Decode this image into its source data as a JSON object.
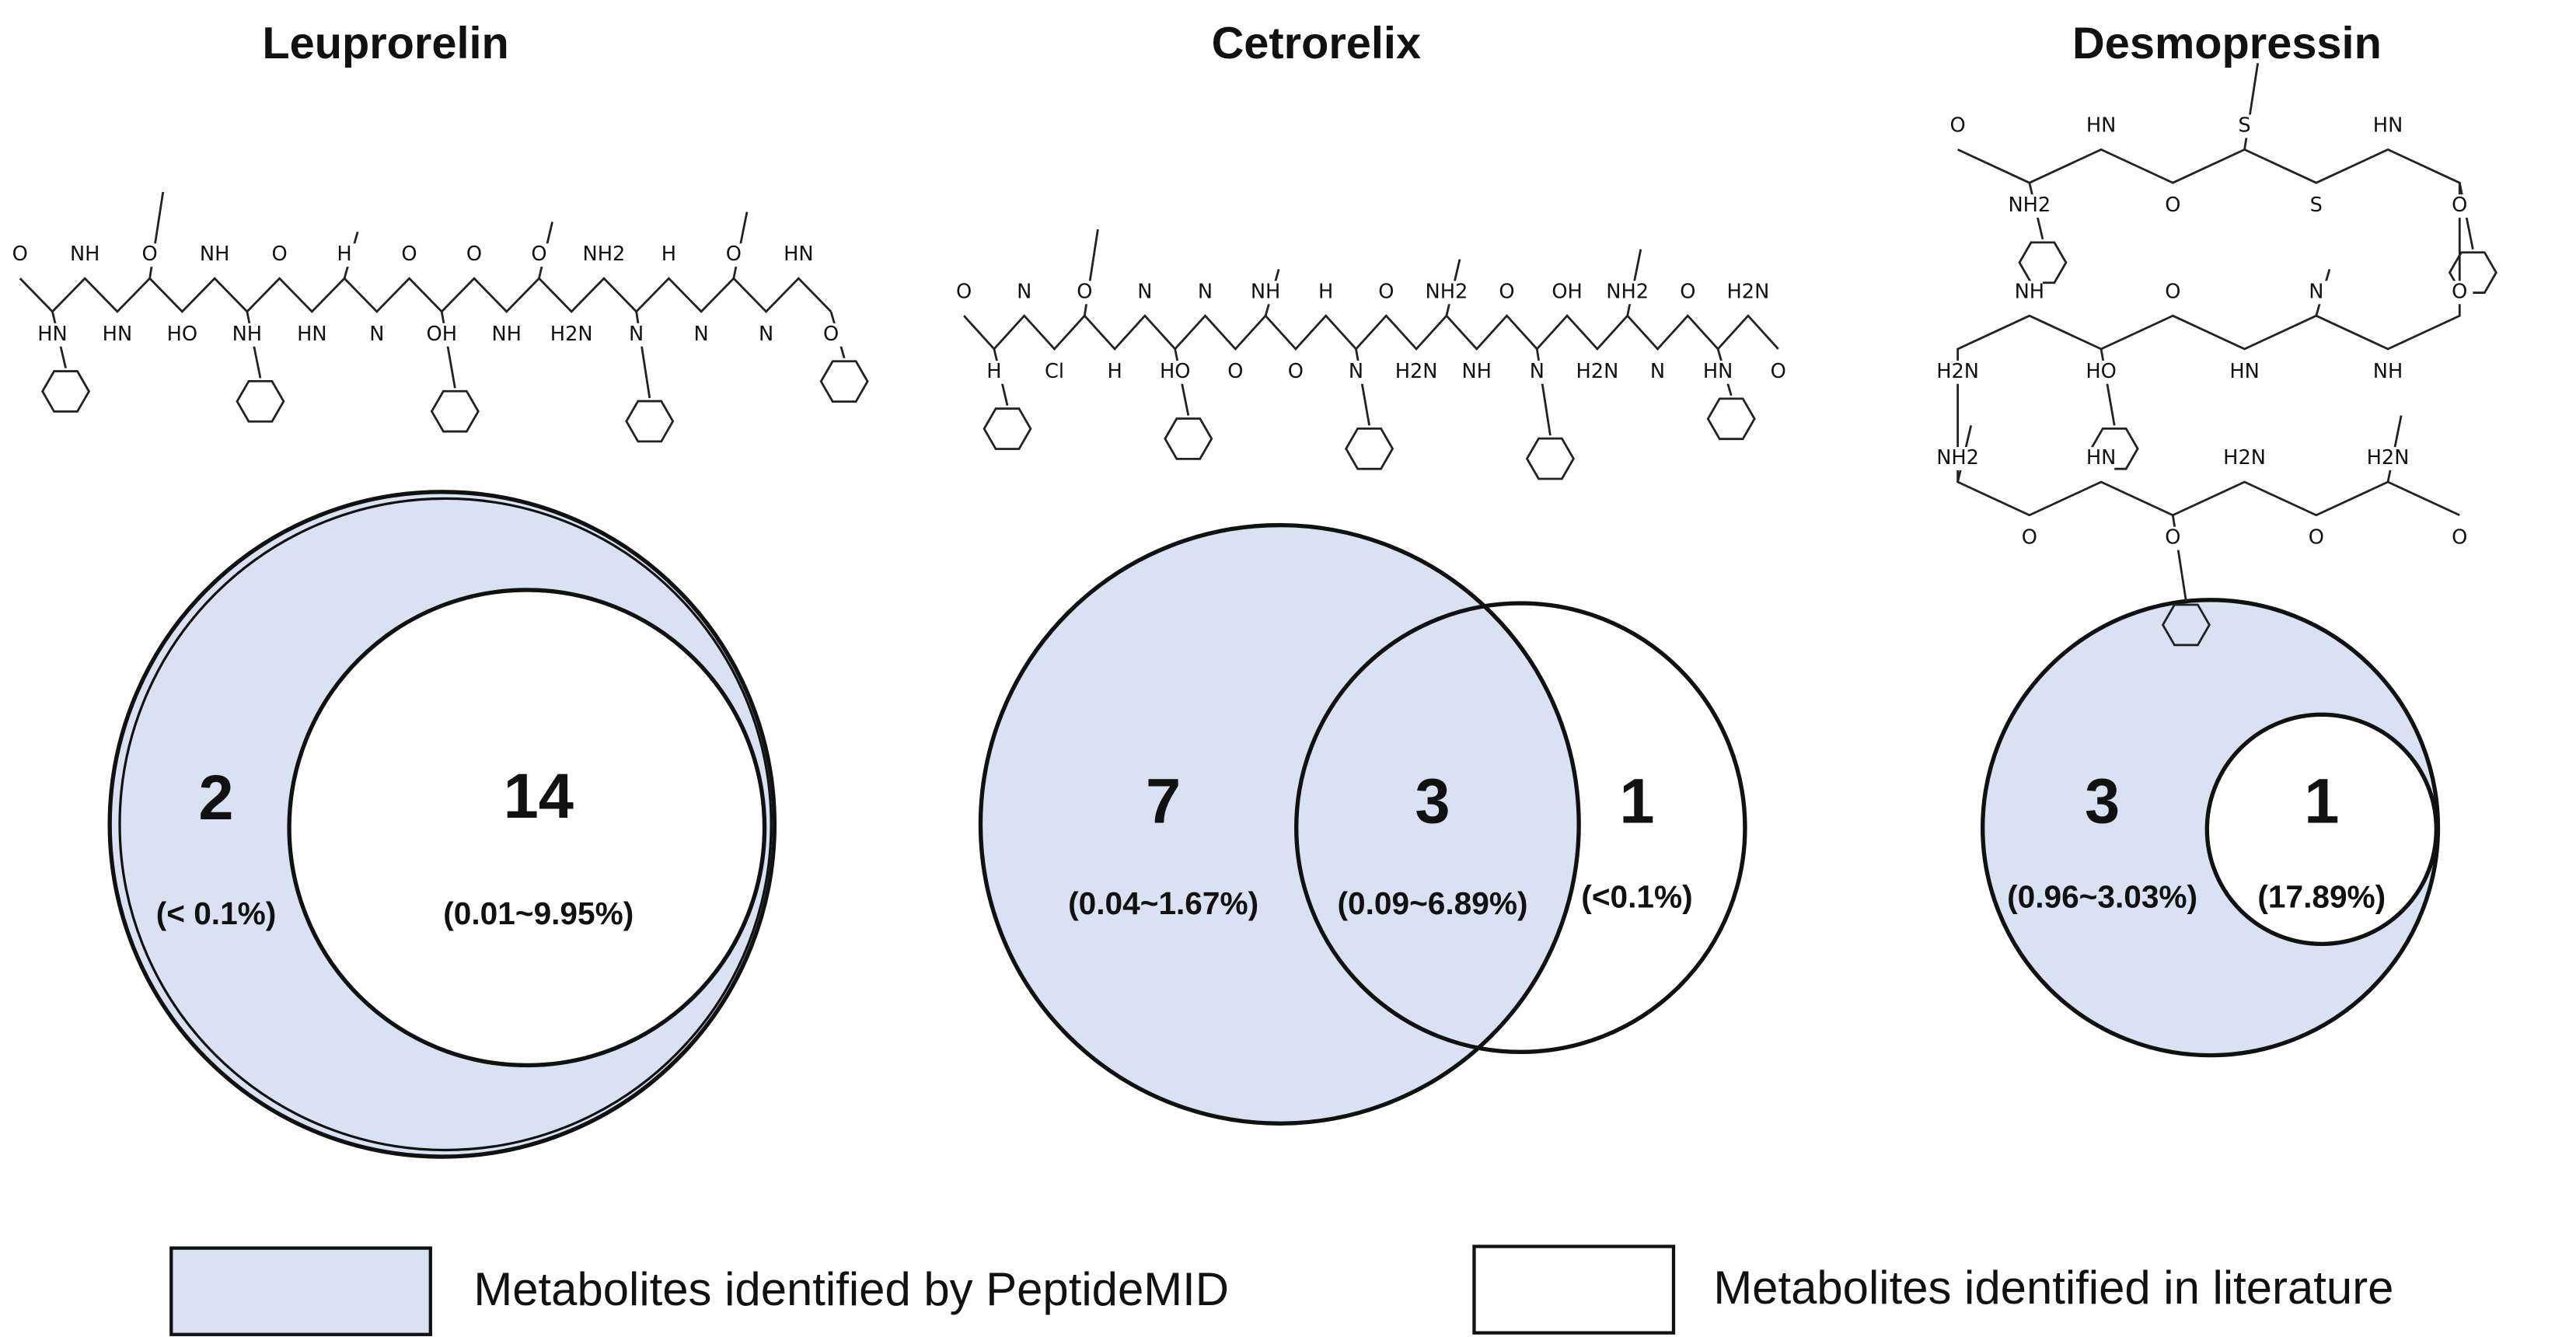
{
  "panels": [
    {
      "title": "Leuprorelin",
      "structure_labels": [
        "O",
        "HN",
        "NH",
        "HN",
        "O",
        "HO",
        "NH",
        "NH",
        "O",
        "HN",
        "H",
        "N",
        "O",
        "OH",
        "O",
        "NH",
        "O",
        "H2N",
        "NH2",
        "N",
        "H",
        "N",
        "O",
        "N",
        "HN",
        "O"
      ],
      "regions": [
        {
          "count": 2,
          "range": "(< 0.1%)"
        },
        {
          "count": 14,
          "range": "(0.01~9.95%)"
        }
      ]
    },
    {
      "title": "Cetrorelix",
      "structure_labels": [
        "O",
        "H",
        "N",
        "Cl",
        "O",
        "H",
        "N",
        "HO",
        "N",
        "O",
        "NH",
        "O",
        "H",
        "N",
        "O",
        "H2N",
        "NH2",
        "NH",
        "O",
        "N",
        "OH",
        "H2N",
        "NH2",
        "N",
        "O",
        "HN",
        "H2N",
        "O"
      ],
      "regions": [
        {
          "count": 7,
          "range": "(0.04~1.67%)"
        },
        {
          "count": 3,
          "range": "(0.09~6.89%)"
        },
        {
          "count": 1,
          "range": "(<0.1%)"
        }
      ]
    },
    {
      "title": "Desmopressin",
      "structure_labels": [
        "O",
        "NH2",
        "HN",
        "O",
        "S",
        "S",
        "HN",
        "O",
        "O",
        "NH",
        "N",
        "HN",
        "O",
        "HO",
        "NH",
        "H2N",
        "NH2",
        "O",
        "HN",
        "O",
        "H2N",
        "O",
        "H2N",
        "O"
      ],
      "regions": [
        {
          "count": 3,
          "range": "(0.96~3.03%)"
        },
        {
          "count": 1,
          "range": "(17.89%)"
        }
      ]
    }
  ],
  "legend": [
    {
      "label": "Metabolites identified by PeptideMID"
    },
    {
      "label": "Metabolites identified in literature"
    }
  ]
}
